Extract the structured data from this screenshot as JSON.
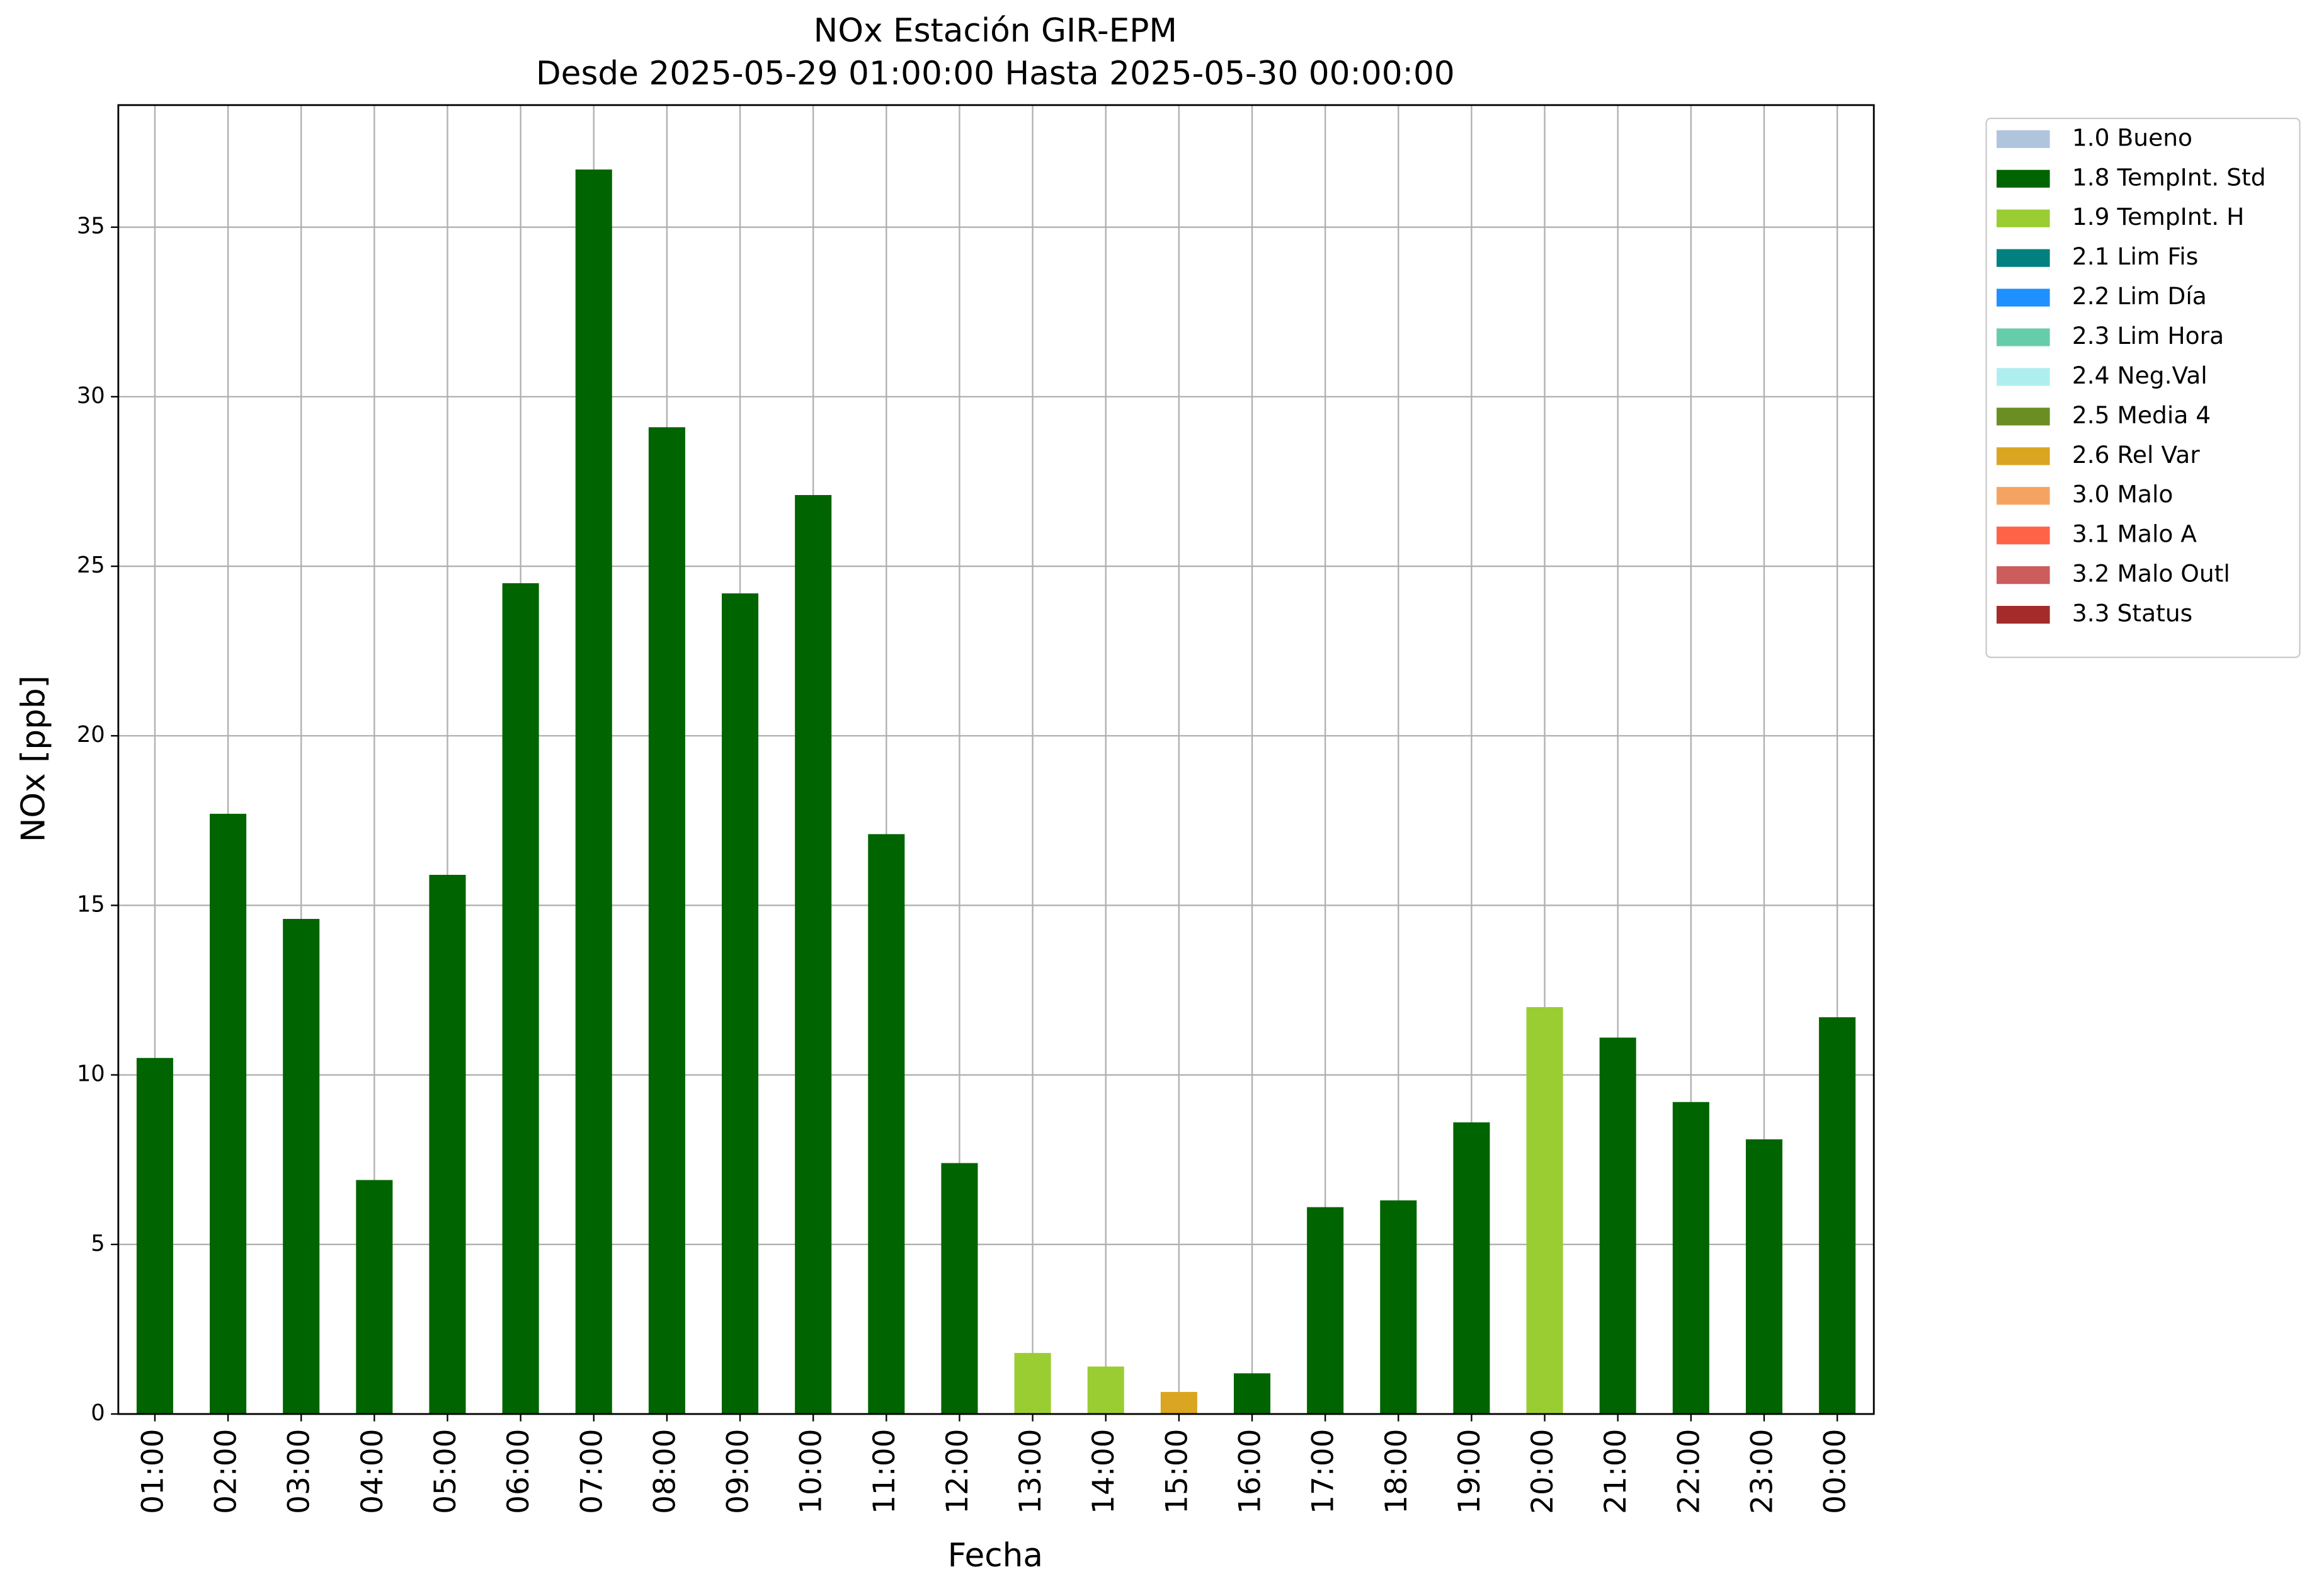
{
  "chart_data": {
    "type": "stacked_bar",
    "title": "NOx Estación GIR-EPM",
    "subtitle": "Desde 2025-05-29 01:00:00 Hasta 2025-05-30 00:00:00",
    "x_label": "Fecha",
    "y_label": "NOx [ppb]",
    "categories": [
      "01:00",
      "02:00",
      "03:00",
      "04:00",
      "05:00",
      "06:00",
      "07:00",
      "08:00",
      "09:00",
      "10:00",
      "11:00",
      "12:00",
      "13:00",
      "14:00",
      "15:00",
      "16:00",
      "17:00",
      "18:00",
      "19:00",
      "20:00",
      "21:00",
      "22:00",
      "23:00",
      "00:00"
    ],
    "series": [
      {
        "name": "1.0 Bueno",
        "color": "#b0c4de",
        "values": [
          null,
          null,
          null,
          null,
          null,
          null,
          null,
          null,
          null,
          null,
          null,
          null,
          null,
          null,
          null,
          null,
          null,
          null,
          null,
          null,
          null,
          null,
          null,
          null
        ]
      },
      {
        "name": "1.8 TempInt. Std",
        "color": "#006400",
        "values": [
          10.5,
          17.7,
          14.6,
          6.9,
          15.9,
          24.5,
          36.7,
          29.1,
          24.2,
          27.1,
          17.1,
          7.4,
          null,
          null,
          null,
          1.2,
          6.1,
          6.3,
          8.6,
          null,
          11.1,
          9.2,
          8.1,
          11.7
        ]
      },
      {
        "name": "1.9 TempInt. H",
        "color": "#9acd32",
        "values": [
          null,
          null,
          null,
          null,
          null,
          null,
          null,
          null,
          null,
          null,
          null,
          null,
          1.8,
          1.4,
          null,
          null,
          null,
          null,
          null,
          12.0,
          null,
          null,
          null,
          null
        ]
      },
      {
        "name": "2.1 Lim Fis",
        "color": "#008080",
        "values": [
          null,
          null,
          null,
          null,
          null,
          null,
          null,
          null,
          null,
          null,
          null,
          null,
          null,
          null,
          null,
          null,
          null,
          null,
          null,
          null,
          null,
          null,
          null,
          null
        ]
      },
      {
        "name": "2.2 Lim Día",
        "color": "#1e90ff",
        "values": [
          null,
          null,
          null,
          null,
          null,
          null,
          null,
          null,
          null,
          null,
          null,
          null,
          null,
          null,
          null,
          null,
          null,
          null,
          null,
          null,
          null,
          null,
          null,
          null
        ]
      },
      {
        "name": "2.3 Lim Hora",
        "color": "#66cdaa",
        "values": [
          null,
          null,
          null,
          null,
          null,
          null,
          null,
          null,
          null,
          null,
          null,
          null,
          null,
          null,
          null,
          null,
          null,
          null,
          null,
          null,
          null,
          null,
          null,
          null
        ]
      },
      {
        "name": "2.4 Neg.Val",
        "color": "#afeeee",
        "values": [
          null,
          null,
          null,
          null,
          null,
          null,
          null,
          null,
          null,
          null,
          null,
          null,
          null,
          null,
          null,
          null,
          null,
          null,
          null,
          null,
          null,
          null,
          null,
          null
        ]
      },
      {
        "name": "2.5 Media 4",
        "color": "#6b8e23",
        "values": [
          null,
          null,
          null,
          null,
          null,
          null,
          null,
          null,
          null,
          null,
          null,
          null,
          null,
          null,
          null,
          null,
          null,
          null,
          null,
          null,
          null,
          null,
          null,
          null
        ]
      },
      {
        "name": "2.6 Rel Var",
        "color": "#daa520",
        "values": [
          null,
          null,
          null,
          null,
          null,
          null,
          null,
          null,
          null,
          null,
          null,
          null,
          null,
          null,
          0.65,
          null,
          null,
          null,
          null,
          null,
          null,
          null,
          null,
          null
        ]
      },
      {
        "name": "3.0 Malo",
        "color": "#f4a460",
        "values": [
          null,
          null,
          null,
          null,
          null,
          null,
          null,
          null,
          null,
          null,
          null,
          null,
          null,
          null,
          null,
          null,
          null,
          null,
          null,
          null,
          null,
          null,
          null,
          null
        ]
      },
      {
        "name": "3.1 Malo A",
        "color": "#ff6347",
        "values": [
          null,
          null,
          null,
          null,
          null,
          null,
          null,
          null,
          null,
          null,
          null,
          null,
          null,
          null,
          null,
          null,
          null,
          null,
          null,
          null,
          null,
          null,
          null,
          null
        ]
      },
      {
        "name": "3.2 Malo Outl",
        "color": "#cd5c5c",
        "values": [
          null,
          null,
          null,
          null,
          null,
          null,
          null,
          null,
          null,
          null,
          null,
          null,
          null,
          null,
          null,
          null,
          null,
          null,
          null,
          null,
          null,
          null,
          null,
          null
        ]
      },
      {
        "name": "3.3 Status",
        "color": "#a52a2a",
        "values": [
          null,
          null,
          null,
          null,
          null,
          null,
          null,
          null,
          null,
          null,
          null,
          null,
          null,
          null,
          null,
          null,
          null,
          null,
          null,
          null,
          null,
          null,
          null,
          null
        ]
      }
    ],
    "ylim": [
      0,
      38.6
    ],
    "yticks": [
      0,
      5,
      10,
      15,
      20,
      25,
      30,
      35
    ],
    "grid": true,
    "legend": "outside-upper-right"
  }
}
